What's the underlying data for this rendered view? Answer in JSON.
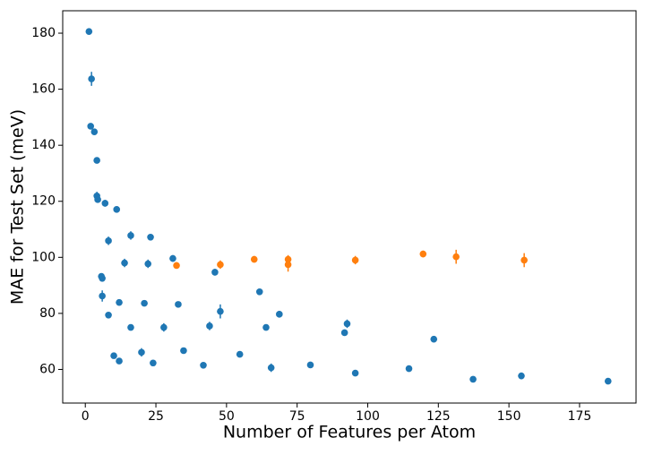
{
  "chart_data": {
    "type": "scatter",
    "xlabel": "Number of Features per Atom",
    "ylabel": "MAE for Test Set (meV)",
    "xlim": [
      -8,
      195
    ],
    "ylim": [
      48,
      188
    ],
    "xticks": [
      0,
      25,
      50,
      75,
      100,
      125,
      150,
      175
    ],
    "yticks": [
      60,
      80,
      100,
      120,
      140,
      160,
      180
    ],
    "series": [
      {
        "color": "#1f77b4",
        "x": [
          1.3,
          2.2,
          1.9,
          3.2,
          4.1,
          4.1,
          4.4,
          7,
          11.1,
          8.2,
          16.1,
          23.1,
          13.9,
          22.2,
          31,
          5.7,
          6,
          6,
          8.2,
          12,
          20.9,
          32.9,
          45.9,
          47.8,
          61.7,
          68.7,
          64,
          44,
          27.8,
          16.1,
          10.1,
          12,
          19.9,
          24,
          34.8,
          41.8,
          54.7,
          65.8,
          79.7,
          91.8,
          92.7,
          95.6,
          114.6,
          123.4,
          137.3,
          154.4,
          185.1
        ],
        "values": [
          180.6,
          163.7,
          146.8,
          144.8,
          134.6,
          121.9,
          120.6,
          119.3,
          117.1,
          105.9,
          107.8,
          107.2,
          98,
          97.7,
          99.6,
          93.2,
          92.5,
          86.2,
          79.4,
          83.9,
          83.6,
          83.2,
          94.7,
          80.7,
          87.7,
          79.7,
          75,
          75.5,
          75,
          75,
          64.9,
          63,
          66.1,
          62.3,
          66.7,
          61.5,
          65.4,
          60.6,
          61.6,
          73.1,
          76.3,
          58.7,
          60.3,
          70.8,
          56.5,
          57.7,
          55.8
        ],
        "errors": [
          0.8,
          2.5,
          1,
          1,
          0.8,
          1.5,
          1,
          1.2,
          1,
          1.5,
          1.5,
          1,
          1.5,
          1.5,
          1.2,
          1,
          1,
          2,
          1,
          1,
          1,
          1,
          1.2,
          2.5,
          1,
          1.2,
          1,
          1.5,
          1.5,
          1,
          1,
          1,
          1.5,
          1,
          1,
          1,
          1,
          1.5,
          1,
          1,
          1.5,
          1,
          1,
          1,
          1,
          1.2,
          1
        ]
      },
      {
        "color": "#ff7f0e",
        "x": [
          32.3,
          47.8,
          59.8,
          71.8,
          71.8,
          95.6,
          119.6,
          131.3,
          155.4
        ],
        "values": [
          97.1,
          97.4,
          99.3,
          99.3,
          97.4,
          99,
          101.2,
          100.2,
          99
        ],
        "errors": [
          1.2,
          1.5,
          1.2,
          1.5,
          2.5,
          1.5,
          1.2,
          2.5,
          2.5
        ]
      }
    ]
  }
}
